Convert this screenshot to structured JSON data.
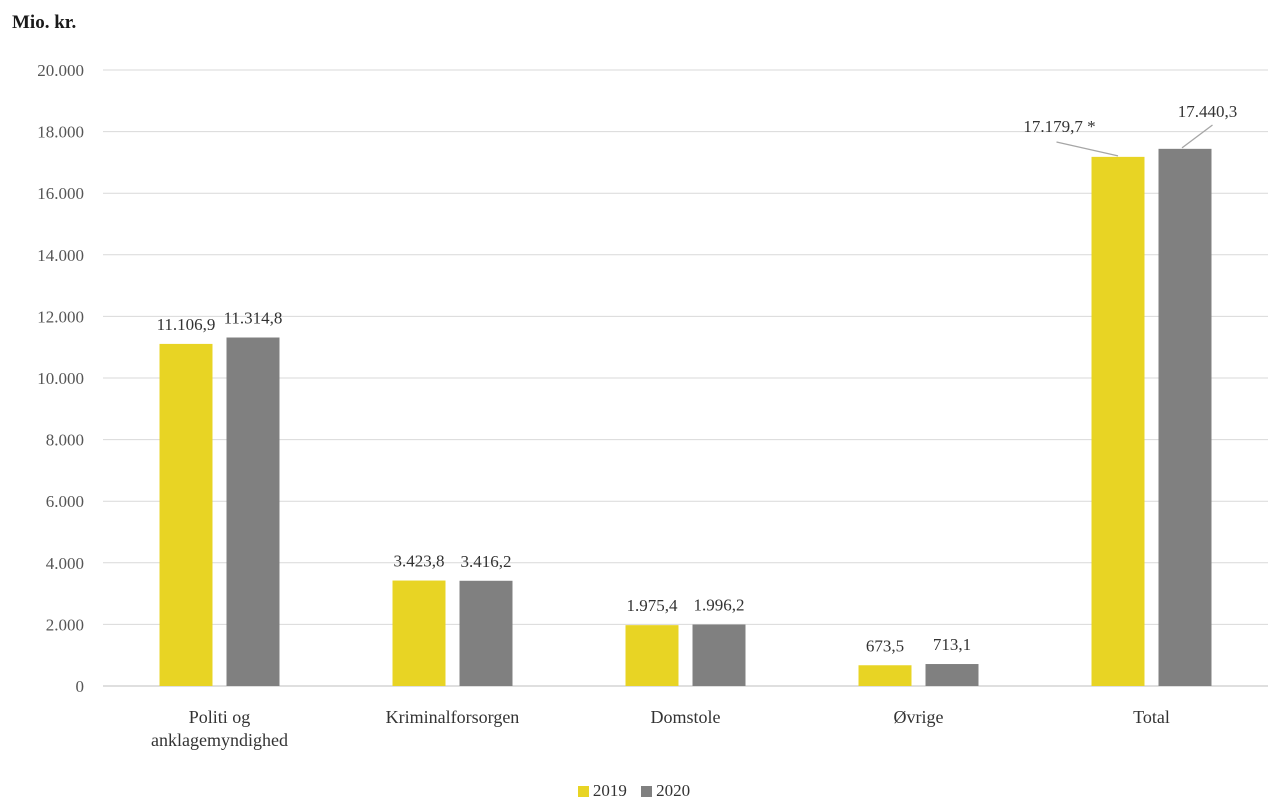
{
  "chart_data": {
    "type": "bar",
    "ylabel": "Mio. kr.",
    "ylim": [
      0,
      20000
    ],
    "yticks": [
      0,
      2000,
      4000,
      6000,
      8000,
      10000,
      12000,
      14000,
      16000,
      18000,
      20000
    ],
    "ytick_labels": [
      "0",
      "2.000",
      "4.000",
      "6.000",
      "8.000",
      "10.000",
      "12.000",
      "14.000",
      "16.000",
      "18.000",
      "20.000"
    ],
    "categories": [
      [
        "Politi og",
        "anklagemyndighed"
      ],
      [
        "Kriminalforsorgen"
      ],
      [
        "Domstole"
      ],
      [
        "Øvrige"
      ],
      [
        "Total"
      ]
    ],
    "series": [
      {
        "name": "2019",
        "color": "#e8d424",
        "values": [
          11106.9,
          3423.8,
          1975.4,
          673.5,
          17179.7
        ],
        "labels": [
          "11.106,9",
          "3.423,8",
          "1.975,4",
          "673,5",
          "17.179,7 *"
        ]
      },
      {
        "name": "2020",
        "color": "#808080",
        "values": [
          11314.8,
          3416.2,
          1996.2,
          713.1,
          17440.3
        ],
        "labels": [
          "11.314,8",
          "3.416,2",
          "1.996,2",
          "713,1",
          "17.440,3"
        ]
      }
    ],
    "grid": true,
    "legend_position": "bottom-center"
  }
}
